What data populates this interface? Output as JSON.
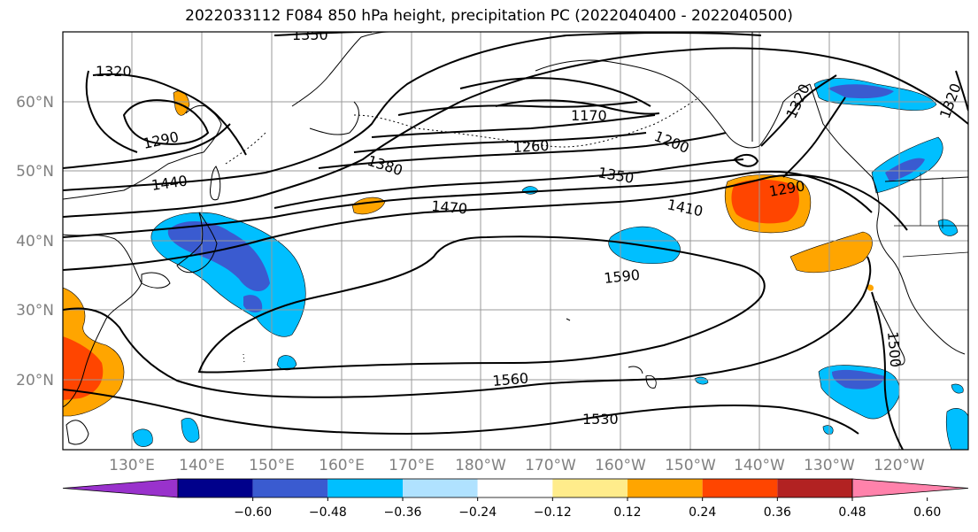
{
  "map": {
    "title": "2022033112 F084 850 hPa height, precipitation PC (2022040400 - 2022040500)",
    "lat_labels": [
      "60°N",
      "50°N",
      "40°N",
      "30°N",
      "20°N"
    ],
    "lon_labels": [
      "130°E",
      "140°E",
      "150°E",
      "160°E",
      "170°E",
      "180°W",
      "170°W",
      "160°W",
      "150°W",
      "140°W",
      "130°W",
      "120°W"
    ],
    "contour_labels": [
      "1320",
      "1350",
      "1290",
      "1440",
      "1380",
      "1260",
      "1170",
      "1200",
      "1350",
      "1470",
      "1410",
      "1290",
      "1590",
      "1560",
      "1530",
      "1500",
      "1320",
      "1320"
    ],
    "colorbar": {
      "tick_labels": [
        "−0.60",
        "−0.48",
        "−0.36",
        "−0.24",
        "−0.12",
        "0.12",
        "0.24",
        "0.36",
        "0.48",
        "0.60"
      ],
      "colors": [
        "#9932cc",
        "#00008b",
        "#3a5bd0",
        "#00bfff",
        "#b0e2ff",
        "#ffffff",
        "#ffec8b",
        "#ffa500",
        "#ff4500",
        "#b22222",
        "#ff82ab"
      ]
    }
  }
}
